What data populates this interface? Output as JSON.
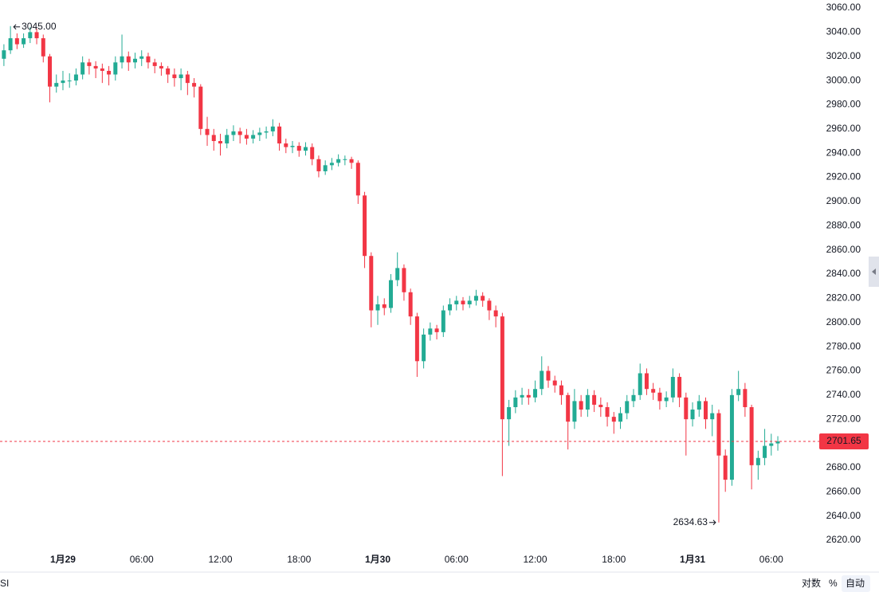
{
  "chart_data": {
    "type": "candlestick",
    "categories": [
      null,
      null,
      null,
      null,
      null,
      null,
      null,
      null,
      null,
      "1月29",
      null,
      null,
      null,
      null,
      null,
      null,
      null,
      null,
      null,
      null,
      null,
      "06:00",
      null,
      null,
      null,
      null,
      null,
      null,
      null,
      null,
      null,
      null,
      null,
      "12:00",
      null,
      null,
      null,
      null,
      null,
      null,
      null,
      null,
      null,
      null,
      null,
      "18:00",
      null,
      null,
      null,
      null,
      null,
      null,
      null,
      null,
      null,
      null,
      null,
      "1月30",
      null,
      null,
      null,
      null,
      null,
      null,
      null,
      null,
      null,
      null,
      null,
      "06:00",
      null,
      null,
      null,
      null,
      null,
      null,
      null,
      null,
      null,
      null,
      null,
      "12:00",
      null,
      null,
      null,
      null,
      null,
      null,
      null,
      null,
      null,
      null,
      null,
      "18:00",
      null,
      null,
      null,
      null,
      null,
      null,
      null,
      null,
      null,
      null,
      null,
      "1月31",
      null,
      null,
      null,
      null,
      null,
      null,
      null,
      null,
      null,
      null,
      null,
      "06:00",
      null
    ],
    "open": [
      3018,
      3025,
      3035,
      3030,
      3035,
      3040,
      3035,
      3020,
      2995,
      2998,
      3000,
      3000,
      3005,
      3015,
      3012,
      3010,
      3008,
      3005,
      3015,
      3020,
      3015,
      3018,
      3020,
      3015,
      3012,
      3010,
      3005,
      3002,
      3005,
      2998,
      2995,
      2960,
      2955,
      2950,
      2948,
      2955,
      2958,
      2955,
      2952,
      2955,
      2957,
      2958,
      2962,
      2948,
      2945,
      2946,
      2942,
      2945,
      2935,
      2925,
      2930,
      2932,
      2935,
      2935,
      2932,
      2905,
      2855,
      2810,
      2815,
      2812,
      2835,
      2845,
      2825,
      2805,
      2768,
      2790,
      2795,
      2792,
      2810,
      2815,
      2818,
      2815,
      2818,
      2822,
      2818,
      2810,
      2805,
      2720,
      2730,
      2738,
      2740,
      2738,
      2745,
      2760,
      2752,
      2748,
      2740,
      2718,
      2735,
      2728,
      2740,
      2732,
      2730,
      2722,
      2718,
      2725,
      2735,
      2740,
      2758,
      2745,
      2742,
      2735,
      2738,
      2755,
      2738,
      2720,
      2728,
      2735,
      2720,
      2725,
      2690,
      2670,
      2740,
      2745,
      2730,
      2682,
      2688,
      2698,
      2700
    ],
    "high": [
      3030,
      3045,
      3039,
      3039,
      3044,
      3043,
      3038,
      3022,
      3005,
      3008,
      3006,
      3010,
      3020,
      3018,
      3016,
      3014,
      3012,
      3020,
      3038,
      3024,
      3023,
      3025,
      3023,
      3018,
      3015,
      3012,
      3010,
      3010,
      3008,
      3002,
      2997,
      2970,
      2960,
      2956,
      2960,
      2963,
      2961,
      2960,
      2959,
      2961,
      2962,
      2968,
      2965,
      2952,
      2950,
      2949,
      2949,
      2948,
      2938,
      2934,
      2936,
      2939,
      2938,
      2937,
      2934,
      2908,
      2858,
      2822,
      2820,
      2840,
      2858,
      2848,
      2828,
      2808,
      2795,
      2800,
      2798,
      2814,
      2820,
      2822,
      2821,
      2822,
      2827,
      2825,
      2820,
      2814,
      2808,
      2736,
      2744,
      2746,
      2745,
      2752,
      2772,
      2764,
      2756,
      2752,
      2742,
      2745,
      2740,
      2745,
      2744,
      2738,
      2734,
      2726,
      2730,
      2740,
      2745,
      2766,
      2762,
      2750,
      2746,
      2743,
      2762,
      2758,
      2742,
      2734,
      2740,
      2738,
      2732,
      2728,
      2695,
      2745,
      2760,
      2750,
      2732,
      2694,
      2712,
      2708,
      2706
    ],
    "low": [
      3012,
      3022,
      3026,
      3027,
      3031,
      3030,
      3015,
      2982,
      2990,
      2992,
      2994,
      2996,
      3001,
      3005,
      3002,
      2998,
      2996,
      3000,
      3010,
      3008,
      3010,
      3012,
      3010,
      3006,
      3004,
      2998,
      2995,
      2992,
      2988,
      2986,
      2955,
      2946,
      2942,
      2938,
      2944,
      2950,
      2948,
      2947,
      2948,
      2950,
      2952,
      2954,
      2942,
      2940,
      2940,
      2937,
      2938,
      2930,
      2920,
      2922,
      2926,
      2929,
      2930,
      2927,
      2898,
      2845,
      2796,
      2798,
      2806,
      2808,
      2830,
      2818,
      2798,
      2755,
      2762,
      2785,
      2786,
      2788,
      2806,
      2810,
      2810,
      2812,
      2814,
      2813,
      2802,
      2796,
      2673,
      2698,
      2725,
      2732,
      2732,
      2734,
      2740,
      2746,
      2742,
      2732,
      2695,
      2712,
      2722,
      2722,
      2726,
      2722,
      2714,
      2708,
      2712,
      2720,
      2730,
      2736,
      2740,
      2736,
      2728,
      2730,
      2734,
      2730,
      2690,
      2714,
      2722,
      2712,
      2706,
      2634.63,
      2660,
      2665,
      2735,
      2722,
      2662,
      2670,
      2682,
      2690,
      2694
    ],
    "close": [
      3025,
      3035,
      3030,
      3035,
      3040,
      3035,
      3020,
      2995,
      2998,
      3000,
      3000,
      3005,
      3015,
      3012,
      3010,
      3008,
      3005,
      3015,
      3020,
      3015,
      3018,
      3020,
      3015,
      3012,
      3010,
      3005,
      3002,
      3005,
      2998,
      2995,
      2960,
      2955,
      2950,
      2948,
      2955,
      2958,
      2955,
      2952,
      2955,
      2957,
      2958,
      2962,
      2948,
      2945,
      2946,
      2942,
      2945,
      2935,
      2925,
      2930,
      2932,
      2935,
      2935,
      2932,
      2905,
      2855,
      2810,
      2815,
      2812,
      2835,
      2845,
      2825,
      2805,
      2768,
      2790,
      2795,
      2792,
      2810,
      2815,
      2818,
      2815,
      2818,
      2822,
      2818,
      2810,
      2805,
      2720,
      2730,
      2738,
      2740,
      2738,
      2745,
      2760,
      2752,
      2748,
      2740,
      2718,
      2735,
      2728,
      2740,
      2732,
      2730,
      2722,
      2718,
      2725,
      2735,
      2740,
      2758,
      2745,
      2742,
      2735,
      2738,
      2755,
      2738,
      2720,
      2728,
      2735,
      2720,
      2725,
      2690,
      2670,
      2740,
      2745,
      2730,
      2682,
      2688,
      2698,
      2700,
      2701.65
    ],
    "up_color": "#22ab94",
    "down_color": "#f23645",
    "ylim": [
      2620,
      3060
    ],
    "yticks": [
      {
        "value": 2620,
        "label": "2620.00"
      },
      {
        "value": 2640,
        "label": "2640.00"
      },
      {
        "value": 2660,
        "label": "2660.00"
      },
      {
        "value": 2680,
        "label": "2680.00"
      },
      {
        "value": 2700,
        "label": "2700.00"
      },
      {
        "value": 2720,
        "label": "2720.00"
      },
      {
        "value": 2740,
        "label": "2740.00"
      },
      {
        "value": 2760,
        "label": "2760.00"
      },
      {
        "value": 2780,
        "label": "2780.00"
      },
      {
        "value": 2800,
        "label": "2800.00"
      },
      {
        "value": 2820,
        "label": "2820.00"
      },
      {
        "value": 2840,
        "label": "2840.00"
      },
      {
        "value": 2860,
        "label": "2860.00"
      },
      {
        "value": 2880,
        "label": "2880.00"
      },
      {
        "value": 2900,
        "label": "2900.00"
      },
      {
        "value": 2920,
        "label": "2920.00"
      },
      {
        "value": 2940,
        "label": "2940.00"
      },
      {
        "value": 2960,
        "label": "2960.00"
      },
      {
        "value": 2980,
        "label": "2980.00"
      },
      {
        "value": 3000,
        "label": "3000.00"
      },
      {
        "value": 3020,
        "label": "3020.00"
      },
      {
        "value": 3040,
        "label": "3040.00"
      },
      {
        "value": 3060,
        "label": "3060.00"
      }
    ],
    "high_label": "3045.00",
    "low_label": "2634.63",
    "last_price_label": "2701.65",
    "footer": {
      "symbol": "SI",
      "log": "对数",
      "percent": "%",
      "auto": "自动"
    }
  }
}
